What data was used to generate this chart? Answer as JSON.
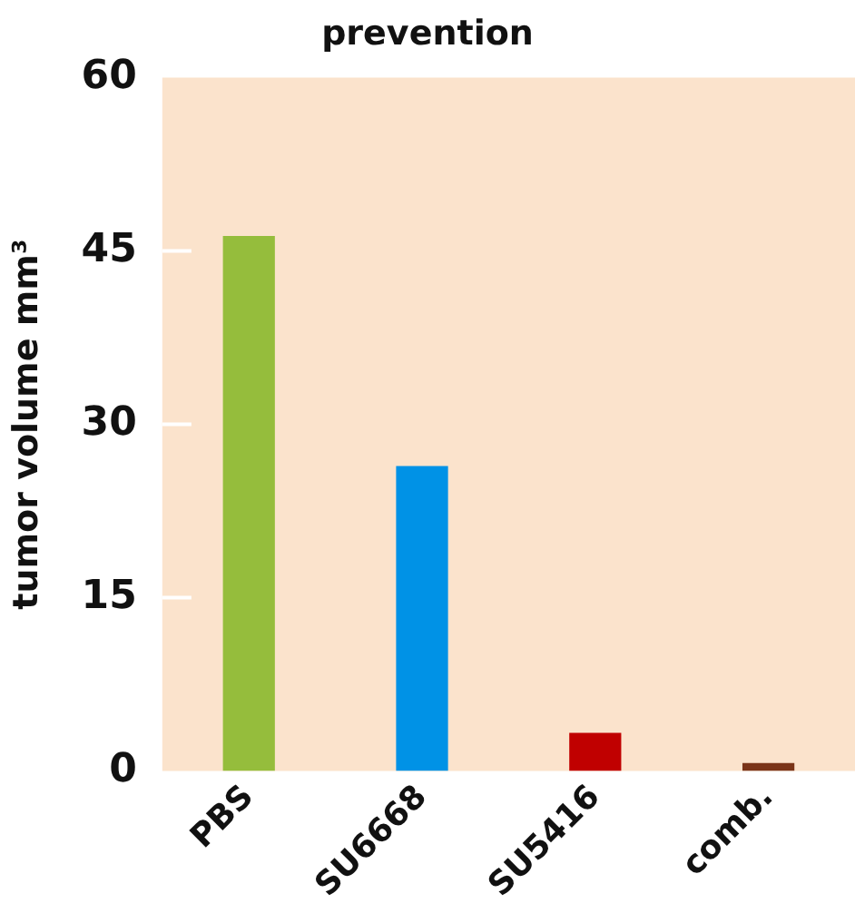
{
  "chart_data": {
    "type": "bar",
    "title": "prevention",
    "ylabel": "tumor volume mm³",
    "categories": [
      "PBS",
      "SU6668",
      "SU5416",
      "comb."
    ],
    "values": [
      46.3,
      26.4,
      3.3,
      0.7
    ],
    "colors": [
      "#95bd3c",
      "#0092e6",
      "#c00000",
      "#7a3418"
    ],
    "ylim": [
      0,
      60
    ],
    "yticks": [
      0,
      15,
      30,
      45,
      60
    ],
    "grid": false,
    "legend": false
  }
}
